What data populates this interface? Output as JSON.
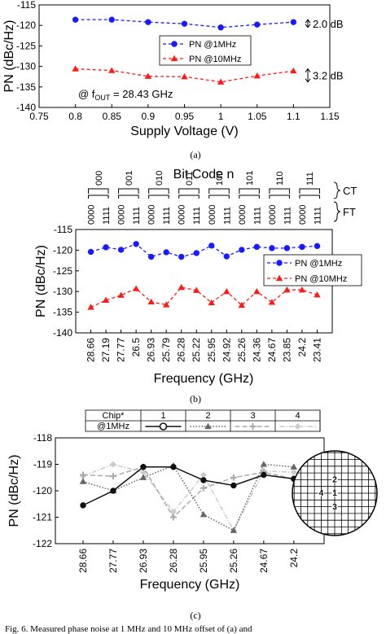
{
  "chart_data": [
    {
      "id": "a",
      "type": "line",
      "caption": "(a)",
      "xlabel": "Supply Voltage (V)",
      "ylabel": "PN (dBc/Hz)",
      "xlim": [
        0.75,
        1.15
      ],
      "ylim": [
        -140,
        -115
      ],
      "xticks": [
        0.75,
        0.8,
        0.85,
        0.9,
        0.95,
        1,
        1.05,
        1.1,
        1.15
      ],
      "xtick_labels": [
        "0.75",
        "0.8",
        "0.85",
        "0.9",
        "0.95",
        "1",
        "1.05",
        "1.1",
        "1.15"
      ],
      "yticks": [
        -140,
        -135,
        -130,
        -125,
        -120,
        -115
      ],
      "ytick_labels": [
        "-140",
        "-135",
        "-130",
        "-125",
        "-120",
        "-115"
      ],
      "grid": false,
      "legend": "upper-middle",
      "x": [
        0.8,
        0.85,
        0.9,
        0.95,
        1.0,
        1.05,
        1.1
      ],
      "series": [
        {
          "name": "PN @1MHz",
          "color": "#1a1aff",
          "marker": "circle",
          "values": [
            -118.6,
            -118.6,
            -119.2,
            -119.6,
            -120.5,
            -119.8,
            -119.2
          ]
        },
        {
          "name": "PN @10MHz",
          "color": "#ff1a1a",
          "marker": "triangle",
          "values": [
            -130.6,
            -131.0,
            -132.4,
            -132.5,
            -133.8,
            -132.3,
            -131.1
          ]
        }
      ],
      "annotations": {
        "range_1mhz": "2.0 dB",
        "range_10mhz": "3.2 dB",
        "fout_prefix": "@ f",
        "fout_sub": "OUT",
        "fout_value": " = 28.43 GHz"
      }
    },
    {
      "id": "b",
      "type": "line",
      "caption": "(b)",
      "title": "Bit Code n",
      "xlabel": "Frequency (GHz)",
      "ylabel": "PN (dBc/Hz)",
      "ylim": [
        -140,
        -115
      ],
      "yticks": [
        -140,
        -135,
        -130,
        -125,
        -120,
        -115
      ],
      "ytick_labels": [
        "-140",
        "-135",
        "-130",
        "-125",
        "-120",
        "-115"
      ],
      "grid": false,
      "legend": "middle-right",
      "ct_label": "CT",
      "ft_label": "FT",
      "ct_codes": [
        "000",
        "001",
        "010",
        "011",
        "100",
        "101",
        "110",
        "111"
      ],
      "ft_codes": [
        "0000",
        "1111"
      ],
      "categories": [
        "28.66",
        "27.19",
        "27.77",
        "26.5",
        "26.93",
        "25.79",
        "26.28",
        "25.22",
        "25.95",
        "24.92",
        "25.26",
        "24.36",
        "24.67",
        "23.85",
        "24.2",
        "23.41"
      ],
      "series": [
        {
          "name": "PN @1MHz",
          "color": "#1a1aff",
          "marker": "circle",
          "values": [
            -120.4,
            -119.3,
            -119.9,
            -118.5,
            -121.6,
            -120.5,
            -121.6,
            -120.7,
            -118.9,
            -121.5,
            -119.9,
            -119.2,
            -119.5,
            -119.5,
            -119.2,
            -119.0
          ]
        },
        {
          "name": "PN @10MHz",
          "color": "#ff1a1a",
          "marker": "triangle",
          "values": [
            -133.8,
            -132.1,
            -130.9,
            -129.3,
            -132.5,
            -133.2,
            -129.0,
            -129.7,
            -132.7,
            -130.0,
            -133.3,
            -130.0,
            -132.6,
            -129.6,
            -129.6,
            -130.8
          ]
        }
      ]
    },
    {
      "id": "c",
      "type": "line",
      "caption": "(c)",
      "xlabel": "Frequency (GHz)",
      "ylabel": "PN (dBc/Hz)",
      "ylim": [
        -122,
        -118
      ],
      "yticks": [
        -122,
        -121,
        -120,
        -119,
        -118
      ],
      "ytick_labels": [
        "-122",
        "-121",
        "-120",
        "-119",
        "-118"
      ],
      "grid": false,
      "legend": "top-table",
      "legend_header": "Chip*",
      "legend_row_label": "@1MHz",
      "categories": [
        "28.66",
        "27.77",
        "26.93",
        "26.28",
        "25.95",
        "25.26",
        "24.67",
        "24.2"
      ],
      "series": [
        {
          "name": "1",
          "color": "#111111",
          "marker": "circle",
          "dash": "solid",
          "values": [
            -120.55,
            -120.0,
            -119.1,
            -119.1,
            -119.6,
            -119.8,
            -119.4,
            -119.55
          ]
        },
        {
          "name": "2",
          "color": "#666666",
          "marker": "triangle",
          "dash": "dotted",
          "values": [
            -119.65,
            -120.0,
            -119.5,
            -119.05,
            -120.9,
            -121.5,
            -119.0,
            -119.1
          ]
        },
        {
          "name": "3",
          "color": "#aaaaaa",
          "marker": "plus",
          "dash": "dashed",
          "values": [
            -119.4,
            -119.45,
            -119.1,
            -121.0,
            -119.9,
            -119.5,
            -119.3,
            -119.55
          ]
        },
        {
          "name": "4",
          "color": "#cccccc",
          "marker": "diamond",
          "dash": "dashdot",
          "values": [
            -119.45,
            -119.0,
            -119.3,
            -120.8,
            -119.4,
            -121.5,
            -119.25,
            -119.3
          ]
        }
      ],
      "wafer_labels": [
        "2",
        "4",
        "1",
        "3"
      ]
    }
  ],
  "caption_footer": "Fig. 6.   Measured phase noise at 1 MHz and 10 MHz offset of (a) and"
}
